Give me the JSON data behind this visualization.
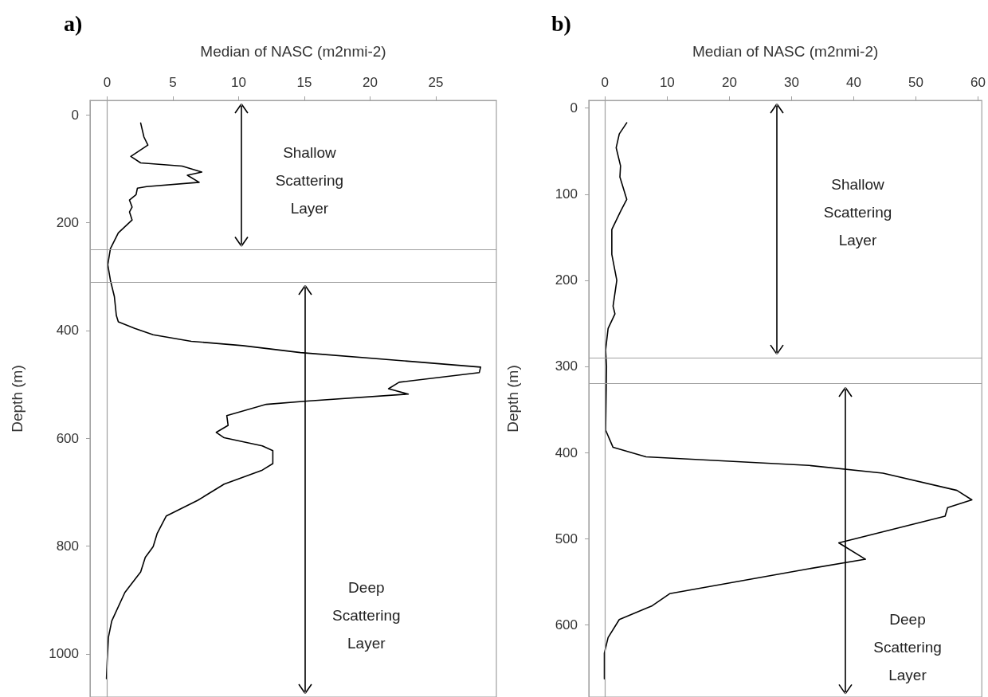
{
  "chart_data": [
    {
      "type": "line",
      "title": "a)",
      "xlabel": "Median of NASC (m2nmi-2)",
      "ylabel": "Depth (m)",
      "xlim": [
        -1.3,
        29.6
      ],
      "xticks": [
        0,
        5,
        10,
        15,
        20,
        25
      ],
      "ylim": [
        1080,
        -27
      ],
      "yticks": [
        0,
        200,
        400,
        600,
        800,
        1000
      ],
      "grid": false,
      "marker": "none",
      "line_style": "solid",
      "series": [
        {
          "color": "#000000",
          "x": [
            2.55,
            2.8,
            3.1,
            1.8,
            2.55,
            5.7,
            7.2,
            6.1,
            7.0,
            3.0,
            2.3,
            2.2,
            1.7,
            1.9,
            1.7,
            1.9,
            0.85,
            0.25,
            0.05,
            0.25,
            0.55,
            0.7,
            0.85,
            2.1,
            3.5,
            6.4,
            10.3,
            14.7,
            23.4,
            28.4,
            28.3,
            22.2,
            21.4,
            22.9,
            15.2,
            12.1,
            9.1,
            9.2,
            8.3,
            8.9,
            11.8,
            12.6,
            12.6,
            11.8,
            8.9,
            6.9,
            4.5,
            3.8,
            3.5,
            2.9,
            2.55,
            1.35,
            0.35,
            0.1,
            0,
            -0.05
          ],
          "values": [
            15,
            41,
            56,
            77,
            89,
            95,
            106,
            112,
            125,
            133,
            136,
            148,
            158,
            171,
            180,
            195,
            219,
            248,
            278,
            307,
            337,
            372,
            384,
            396,
            408,
            420,
            428,
            441,
            458,
            468,
            478,
            496,
            508,
            518,
            531,
            537,
            558,
            576,
            589,
            599,
            614,
            623,
            647,
            659,
            685,
            715,
            744,
            777,
            801,
            821,
            848,
            886,
            939,
            969,
            1016,
            1046
          ]
        }
      ],
      "ref_lines": [
        {
          "axis": "x",
          "value": 0,
          "color": "#a0a0a0"
        },
        {
          "axis": "y",
          "value": 250,
          "color": "#a0a0a0"
        },
        {
          "axis": "y",
          "value": 310,
          "color": "#a0a0a0"
        }
      ],
      "annotations": [
        "Shallow Scattering Layer",
        "Deep Scattering Layer"
      ]
    },
    {
      "type": "line",
      "title": "b)",
      "xlabel": "Median of NASC (m2nmi-2)",
      "ylabel": "Depth (m)",
      "xlim": [
        -2.6,
        60.6
      ],
      "xticks": [
        0,
        10,
        20,
        30,
        40,
        50,
        60
      ],
      "ylim": [
        684,
        -9
      ],
      "yticks": [
        0,
        100,
        200,
        300,
        400,
        500,
        600
      ],
      "grid": false,
      "marker": "none",
      "line_style": "solid",
      "series": [
        {
          "color": "#000000",
          "x": [
            3.5,
            2.3,
            1.8,
            2.5,
            2.4,
            3.5,
            2.5,
            1.1,
            1.1,
            1.9,
            1.3,
            1.6,
            0.5,
            0.1,
            0.25,
            0.1,
            1.3,
            6.6,
            32.8,
            44.7,
            56.6,
            59.0,
            55.1,
            54.7,
            37.6,
            41.9,
            32.8,
            10.4,
            7.6,
            2.3,
            0.5,
            -0.1,
            -0.1
          ],
          "values": [
            17,
            30,
            46,
            67,
            80,
            106,
            120,
            141,
            170,
            200,
            230,
            239,
            256,
            281,
            300,
            374,
            394,
            405,
            415,
            424,
            444,
            455,
            464,
            474,
            505,
            524,
            535,
            564,
            578,
            594,
            615,
            633,
            663
          ]
        }
      ],
      "ref_lines": [
        {
          "axis": "x",
          "value": 0,
          "color": "#a0a0a0"
        },
        {
          "axis": "y",
          "value": 290,
          "color": "#a0a0a0"
        },
        {
          "axis": "y",
          "value": 320,
          "color": "#a0a0a0"
        }
      ],
      "annotations": [
        "Shallow Scattering Layer",
        "Deep Scattering Layer"
      ]
    }
  ]
}
